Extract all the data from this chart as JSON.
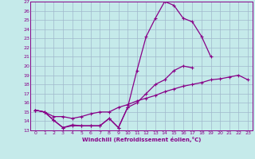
{
  "xlabel": "Windchill (Refroidissement éolien,°C)",
  "xlim": [
    -0.5,
    23.5
  ],
  "ylim": [
    13,
    27
  ],
  "xticks": [
    0,
    1,
    2,
    3,
    4,
    5,
    6,
    7,
    8,
    9,
    10,
    11,
    12,
    13,
    14,
    15,
    16,
    17,
    18,
    19,
    20,
    21,
    22,
    23
  ],
  "yticks": [
    13,
    14,
    15,
    16,
    17,
    18,
    19,
    20,
    21,
    22,
    23,
    24,
    25,
    26,
    27
  ],
  "background_color": "#c5eaea",
  "line_color": "#880088",
  "grid_color": "#a0b8cc",
  "series1": [
    [
      0,
      15.2
    ],
    [
      1,
      15.0
    ],
    [
      2,
      14.1
    ],
    [
      3,
      13.3
    ],
    [
      4,
      13.6
    ],
    [
      5,
      13.5
    ],
    [
      6,
      13.5
    ],
    [
      7,
      13.5
    ],
    [
      8,
      14.3
    ],
    [
      9,
      13.3
    ],
    [
      10,
      15.5
    ],
    [
      11,
      19.5
    ],
    [
      12,
      23.2
    ],
    [
      13,
      25.2
    ],
    [
      14,
      27.0
    ],
    [
      15,
      26.6
    ],
    [
      16,
      25.2
    ],
    [
      17,
      24.8
    ],
    [
      18,
      23.2
    ],
    [
      19,
      21.0
    ],
    [
      20,
      null
    ],
    [
      21,
      null
    ],
    [
      22,
      null
    ],
    [
      23,
      null
    ]
  ],
  "series2": [
    [
      0,
      15.2
    ],
    [
      1,
      15.0
    ],
    [
      2,
      14.1
    ],
    [
      3,
      13.3
    ],
    [
      4,
      13.5
    ],
    [
      5,
      13.5
    ],
    [
      6,
      13.5
    ],
    [
      7,
      13.5
    ],
    [
      8,
      14.3
    ],
    [
      9,
      13.3
    ],
    [
      10,
      15.5
    ],
    [
      11,
      16.0
    ],
    [
      12,
      17.0
    ],
    [
      13,
      18.0
    ],
    [
      14,
      18.5
    ],
    [
      15,
      19.5
    ],
    [
      16,
      20.0
    ],
    [
      17,
      19.8
    ],
    [
      18,
      null
    ],
    [
      19,
      null
    ],
    [
      20,
      null
    ],
    [
      21,
      null
    ],
    [
      22,
      null
    ],
    [
      23,
      null
    ]
  ],
  "series3": [
    [
      0,
      15.2
    ],
    [
      1,
      15.0
    ],
    [
      2,
      14.5
    ],
    [
      3,
      14.5
    ],
    [
      4,
      14.3
    ],
    [
      5,
      14.5
    ],
    [
      6,
      14.8
    ],
    [
      7,
      15.0
    ],
    [
      8,
      15.0
    ],
    [
      9,
      15.5
    ],
    [
      10,
      15.8
    ],
    [
      11,
      16.2
    ],
    [
      12,
      16.5
    ],
    [
      13,
      16.8
    ],
    [
      14,
      17.2
    ],
    [
      15,
      17.5
    ],
    [
      16,
      17.8
    ],
    [
      17,
      18.0
    ],
    [
      18,
      18.2
    ],
    [
      19,
      18.5
    ],
    [
      20,
      18.6
    ],
    [
      21,
      18.8
    ],
    [
      22,
      19.0
    ],
    [
      23,
      18.5
    ]
  ]
}
